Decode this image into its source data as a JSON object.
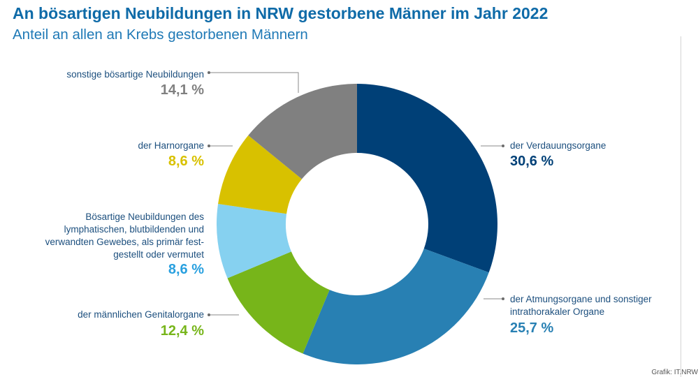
{
  "header": {
    "title": "An bösartigen Neubildungen in NRW gestorbene Männer im Jahr 2022",
    "subtitle": "Anteil an allen an Krebs gestorbenen Männern"
  },
  "source": "Grafik: IT.NRW",
  "chart_data": {
    "type": "pie",
    "donut": true,
    "title": "An bösartigen Neubildungen in NRW gestorbene Männer im Jahr 2022",
    "subtitle": "Anteil an allen an Krebs gestorbenen Männern",
    "unit": "%",
    "slices": [
      {
        "label": "der Verdauungsorgane",
        "value": 30.6,
        "display": "30,6 %",
        "color": "#004077",
        "value_color": "#004077"
      },
      {
        "label": "der Atmungsorgane und sonstiger intrathorakaler Organe",
        "value": 25.7,
        "display": "25,7 %",
        "color": "#2880b3",
        "value_color": "#2880b3"
      },
      {
        "label": "der männlichen Genitalorgane",
        "value": 12.4,
        "display": "12,4 %",
        "color": "#77b51a",
        "value_color": "#77b51a"
      },
      {
        "label": "Bösartige Neubildungen des lymphatischen, blutbildenden und verwandten Gewebes, als primär fest-gestellt oder vermutet",
        "value": 8.6,
        "display": "8,6 %",
        "color": "#86d1f0",
        "value_color": "#29a0df"
      },
      {
        "label": "der Harnorgane",
        "value": 8.6,
        "display": "8,6 %",
        "color": "#d8c100",
        "value_color": "#d8c100"
      },
      {
        "label": "sonstige bösartige Neubildungen",
        "value": 14.1,
        "display": "14,1 %",
        "color": "#808080",
        "value_color": "#808080"
      }
    ],
    "label_lines": {
      "atmung": [
        "der Atmungsorgane und sonstiger",
        "intrathorakaler Organe"
      ],
      "lymph": [
        "Bösartige Neubildungen des",
        "lymphatischen, blutbildenden und",
        "verwandten Gewebes, als primär fest-",
        "gestellt oder vermutet"
      ]
    }
  }
}
